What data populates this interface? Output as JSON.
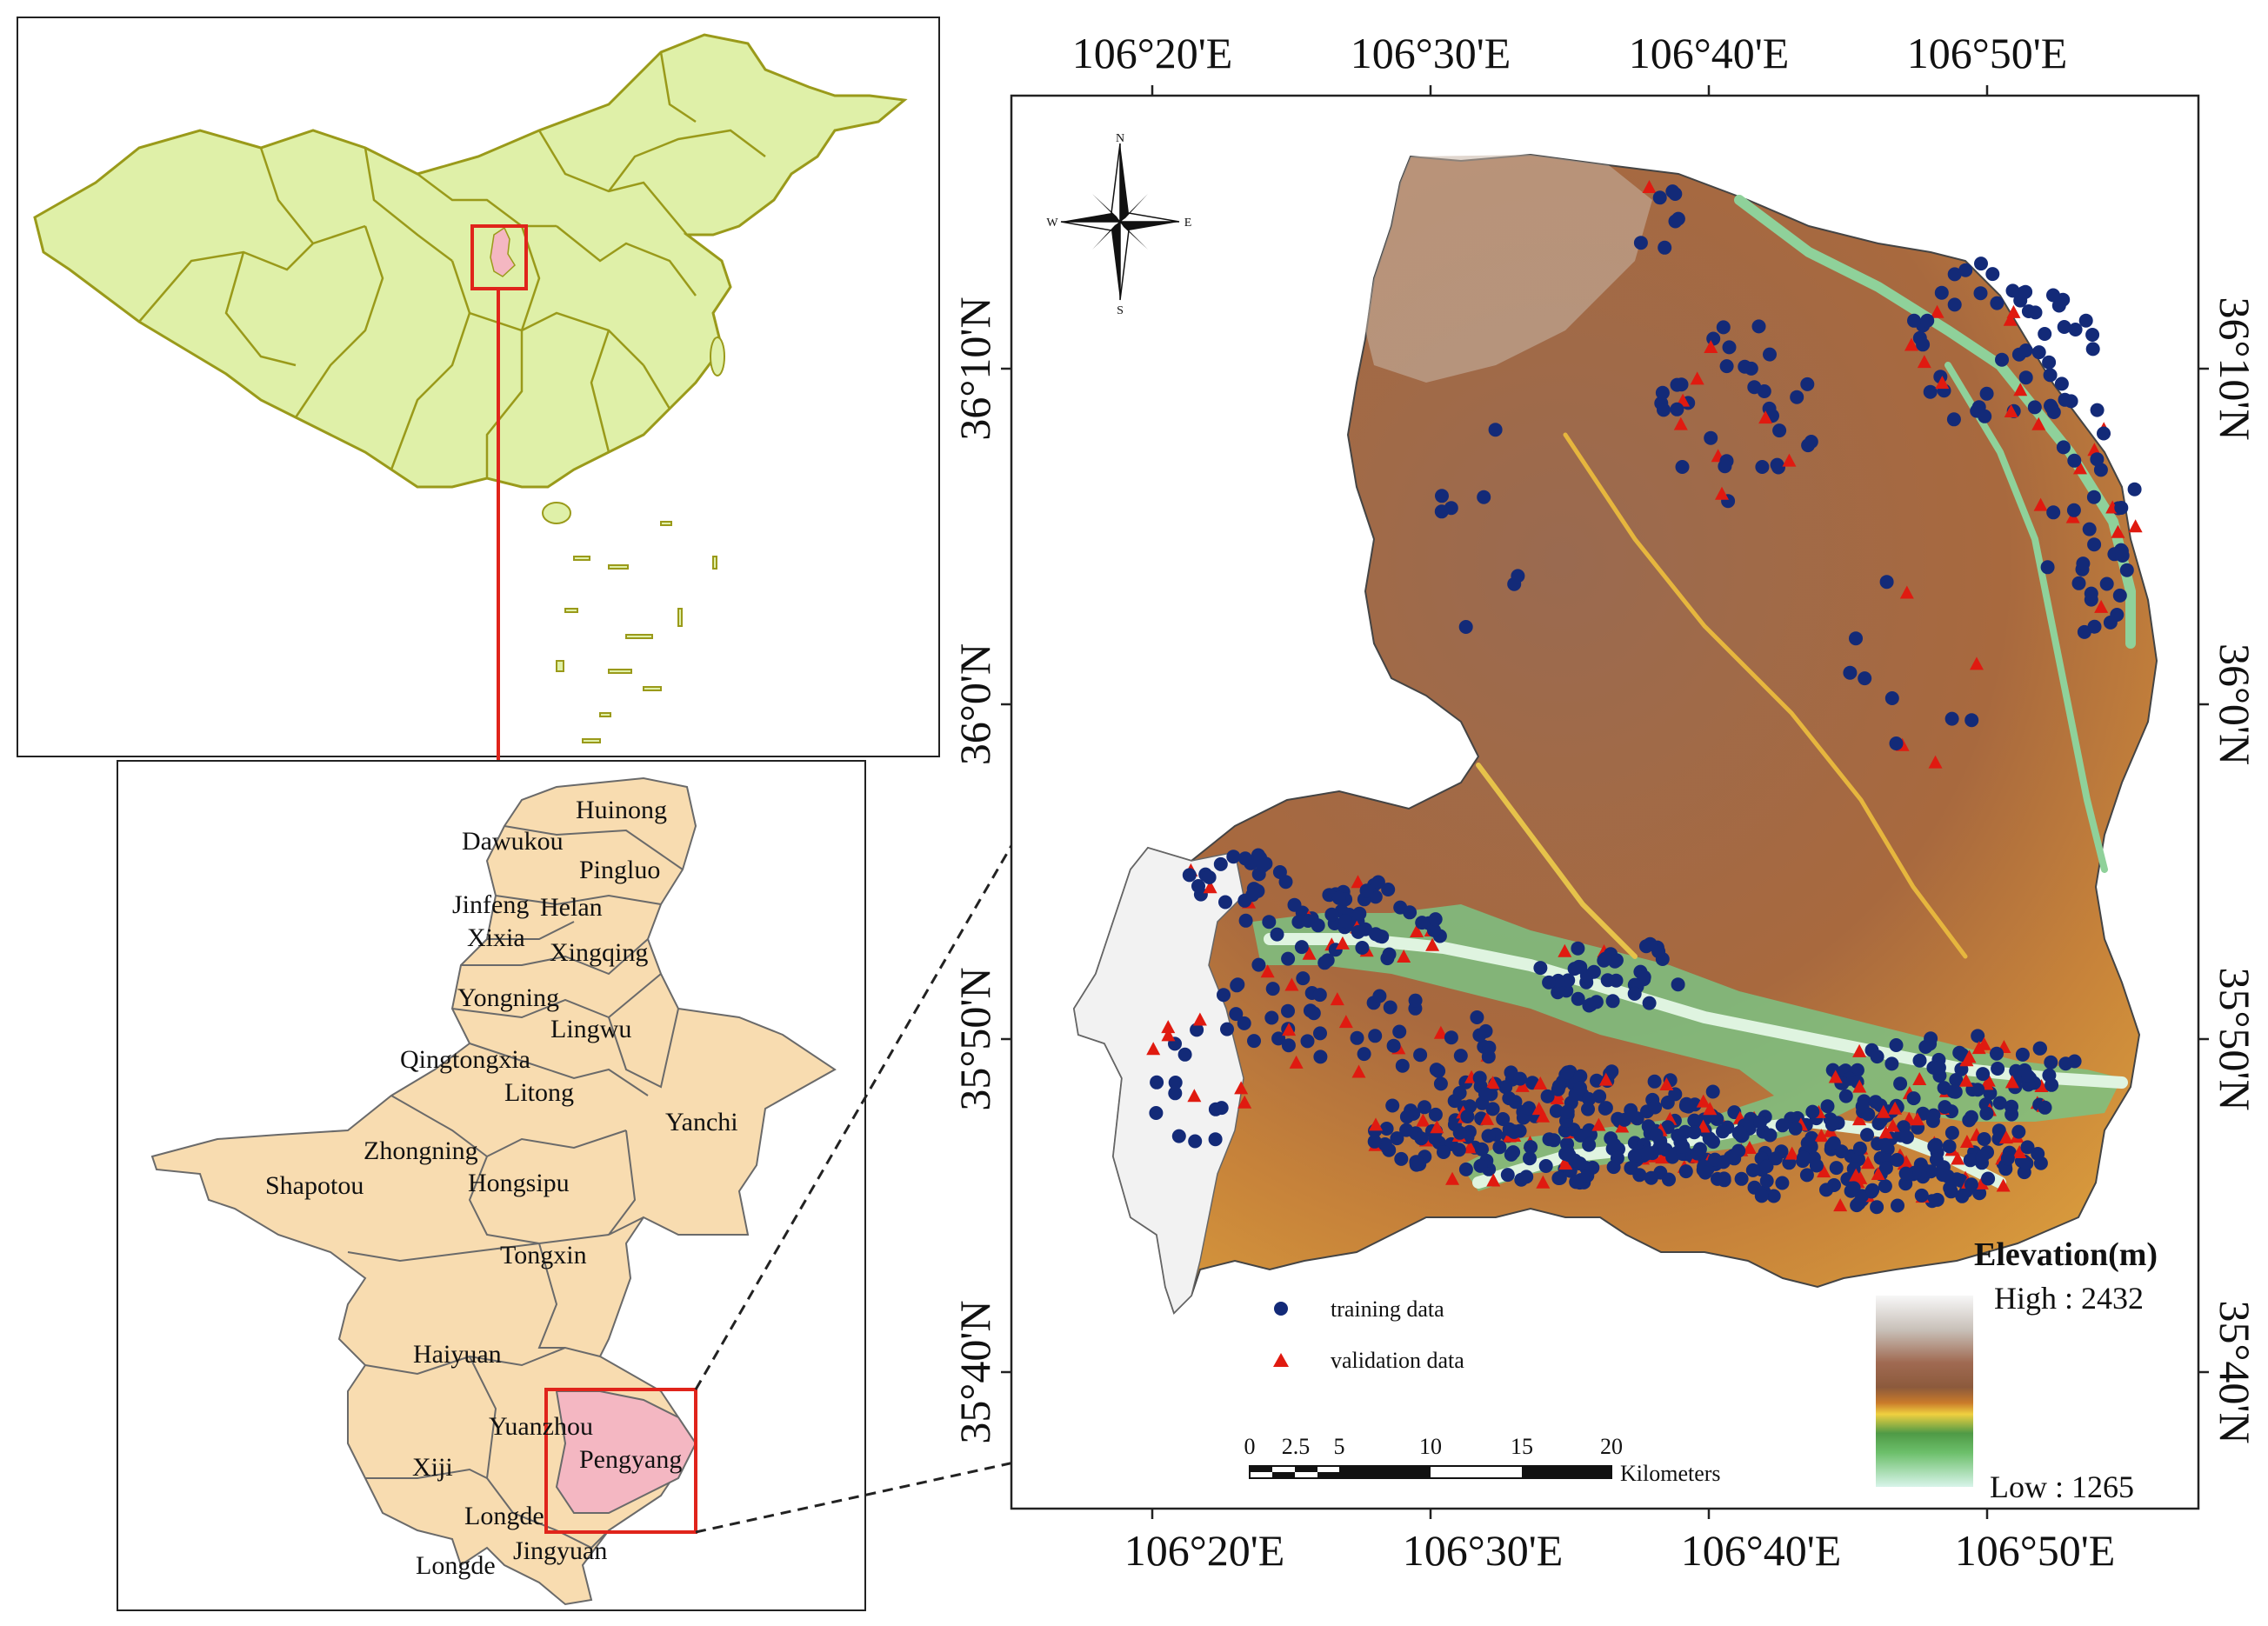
{
  "china_map": {
    "fill_color": "#dff0a8",
    "border_color": "#9a9a1a",
    "highlight_color": "#f4b7c2",
    "box_color": "#e0241b"
  },
  "ningxia_map": {
    "fill_color": "#f8dcb0",
    "highlight_color": "#f4b7c2",
    "box_color": "#e0241b",
    "counties": [
      "Huinong",
      "Dawukou",
      "Pingluo",
      "Jinfeng",
      "Helan",
      "Xixia",
      "Xingqing",
      "Yongning",
      "Lingwu",
      "Qingtongxia",
      "Litong",
      "Yanchi",
      "Zhongning",
      "Shapotou",
      "Hongsipu",
      "Tongxin",
      "Haiyuan",
      "Yuanzhou",
      "Pengyang",
      "Xiji",
      "Longde",
      "Jingyuan",
      "Longde"
    ]
  },
  "study_area": {
    "top_lon_labels": [
      "106°20'E",
      "106°30'E",
      "106°40'E",
      "106°50'E"
    ],
    "bottom_lon_labels": [
      "106°20'E",
      "106°30'E",
      "106°40'E",
      "106°50'E"
    ],
    "left_lat_labels": [
      "36°10'N",
      "36°0'N",
      "35°50'N",
      "35°40'N"
    ],
    "right_lat_labels": [
      "36°10'N",
      "36°0'N",
      "35°50'N",
      "35°40'N"
    ],
    "compass": {
      "n": "N",
      "s": "S",
      "e": "E",
      "w": "W"
    },
    "legend": {
      "training_label": "training data",
      "validation_label": "validation data",
      "training_color": "#132a78",
      "validation_color": "#e01a10"
    },
    "elevation": {
      "title": "Elevation(m)",
      "high": "High : 2432",
      "low": "Low : 1265",
      "colors": [
        "#f7f7f7",
        "#c8c0b8",
        "#a0705a",
        "#8c5a3c",
        "#b46a2e",
        "#e8b83a",
        "#5a9a4a",
        "#7cc28a",
        "#d8f2e6"
      ]
    },
    "scale_bar": {
      "ticks": [
        "0",
        "2.5",
        "5",
        "10",
        "15",
        "20"
      ],
      "unit": "Kilometers"
    }
  }
}
